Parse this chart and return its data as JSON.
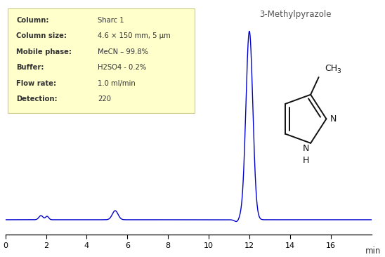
{
  "xlim": [
    0,
    18
  ],
  "ylim": [
    -0.08,
    1.15
  ],
  "xticks": [
    0,
    2,
    4,
    6,
    8,
    10,
    12,
    14,
    16
  ],
  "xlabel": "min",
  "line_color": "#0000CC",
  "background_color": "#ffffff",
  "box_bg_color": "#FFFFCC",
  "box_labels": [
    "Column:",
    "Column size:",
    "Mobile phase:",
    "Buffer:",
    "Flow rate:",
    "Detection:"
  ],
  "box_values": [
    "Sharc 1",
    "4.6 × 150 mm, 5 μm",
    "MeCN – 99.8%",
    "H2SO4 - 0.2%",
    "1.0 ml/min",
    "220"
  ],
  "title": "3-Methylpyrazole",
  "title_color": "#555555",
  "text_color": "#333333"
}
